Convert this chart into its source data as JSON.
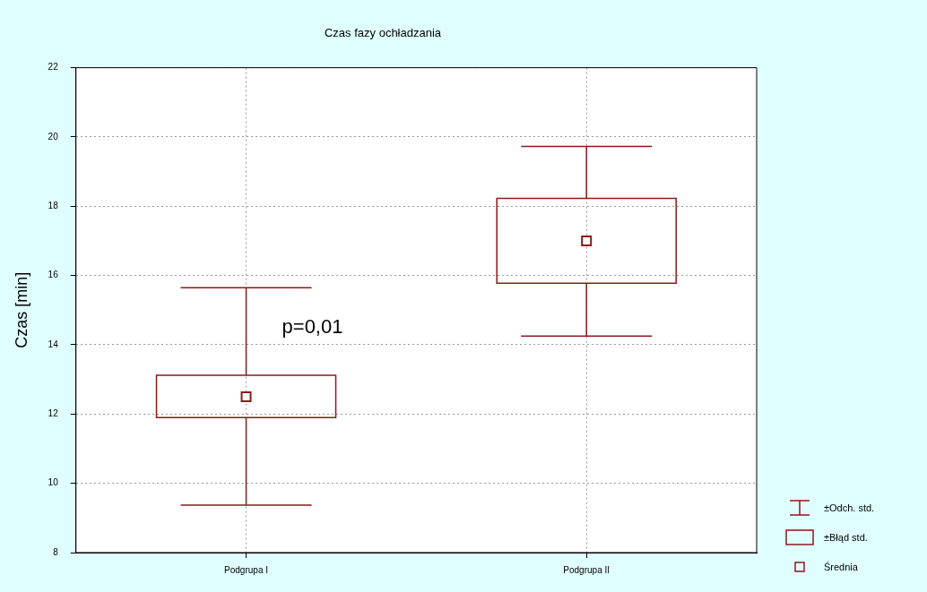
{
  "chart_data": {
    "type": "box",
    "title": "Czas fazy ochładzania",
    "ylabel": "Czas [min]",
    "categories": [
      "Podgrupa I",
      "Podgrupa II"
    ],
    "boxes": [
      {
        "low": 9.37,
        "q1": 11.9,
        "q3": 13.12,
        "high": 15.65,
        "mean": 12.5
      },
      {
        "low": 14.25,
        "q1": 15.78,
        "q3": 18.23,
        "high": 19.73,
        "mean": 17.0
      }
    ],
    "color": "#8b1a1a",
    "ylim": [
      8,
      22
    ],
    "yticks": [
      8,
      10,
      12,
      14,
      16,
      18,
      20,
      22
    ],
    "grid": true,
    "marker": "square",
    "annotations": [
      {
        "text": "p=0,01",
        "x": "Podgrupa I",
        "y": 14.2
      },
      "±Odch. std.",
      "±Błąd std.",
      "Średnia"
    ]
  }
}
